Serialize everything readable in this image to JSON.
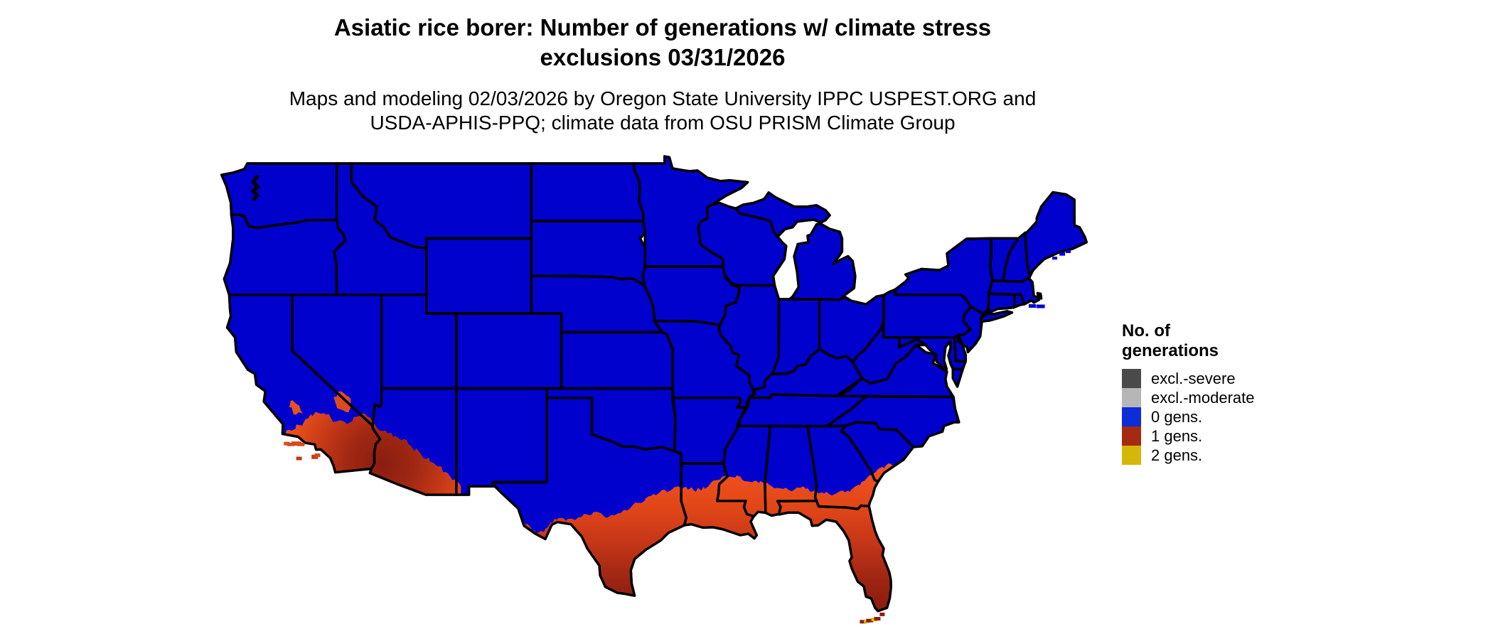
{
  "title": {
    "line1": "Asiatic rice borer: Number of generations w/ climate stress",
    "line2": "exclusions 03/31/2026"
  },
  "subtitle": {
    "line1": "Maps and modeling 02/03/2026 by Oregon State University IPPC USPEST.ORG and",
    "line2": "USDA-APHIS-PPQ; climate data from OSU PRISM Climate Group"
  },
  "legend": {
    "title_line1": "No. of",
    "title_line2": "generations",
    "items": [
      {
        "label": "excl.-severe",
        "color": "#4a4a4a"
      },
      {
        "label": "excl.-moderate",
        "color": "#b6b6b6"
      },
      {
        "label": "0 gens.",
        "color": "#0d2dd8"
      },
      {
        "label": "1 gens.",
        "color": "#a52a12"
      },
      {
        "label": "2 gens.",
        "color": "#d5b70a"
      }
    ]
  },
  "map": {
    "region": "Contiguous United States",
    "projection": "latitude-longitude",
    "base_color": "#0101cd",
    "state_border_color": "#000000",
    "water_color": "#ffffff",
    "heat_gradient": {
      "band_north_edge": "#f2531d",
      "band_south_deep": "#8a1d10"
    },
    "two_gens_color": "#ddbe00",
    "class_regions": [
      {
        "class": "0 gens.",
        "coverage": "most of the contiguous United States"
      },
      {
        "class": "1 gens.",
        "coverage": "coastal southern California, southwestern Arizona, far west Texas along the Rio Grande, southern Texas, Gulf Coast, southern Georgia and coastal South Carolina, Florida"
      },
      {
        "class": "2 gens.",
        "coverage": "small spots in the Florida Keys"
      }
    ]
  }
}
